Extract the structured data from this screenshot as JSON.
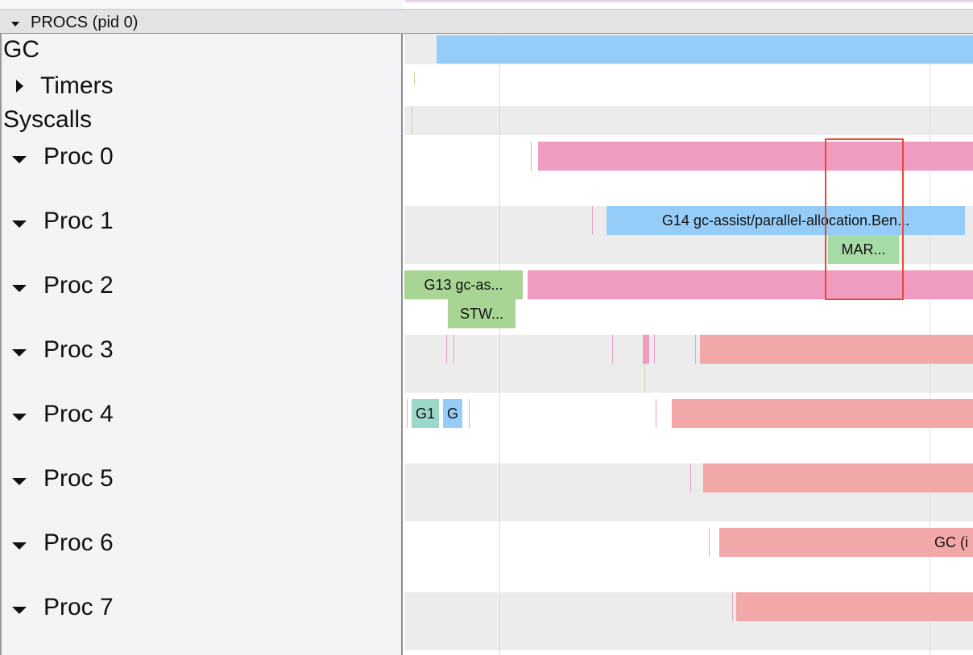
{
  "header": {
    "title": "PROCS (pid 0)"
  },
  "rows": {
    "gc": "GC",
    "timers": "Timers",
    "syscalls": "Syscalls",
    "proc0": "Proc 0",
    "proc1": "Proc 1",
    "proc2": "Proc 2",
    "proc3": "Proc 3",
    "proc4": "Proc 4",
    "proc5": "Proc 5",
    "proc6": "Proc 6",
    "proc7": "Proc 7"
  },
  "slices": {
    "proc1_goroutine": "G14 gc-assist/parallel-allocation.Ben...",
    "proc1_mark": "MAR...",
    "proc2_goroutine": "G13 gc-as...",
    "proc2_stw": "STW...",
    "proc4_g1": "G1",
    "proc4_g": "G",
    "proc6_gc": "GC (i"
  },
  "colors": {
    "gc_bar": "#96cdf8",
    "running_pink": "#f09cc0",
    "gc_salmon": "#f2a7a8",
    "goroutine_green": "#a8d494",
    "highlight": "#e64a35"
  }
}
